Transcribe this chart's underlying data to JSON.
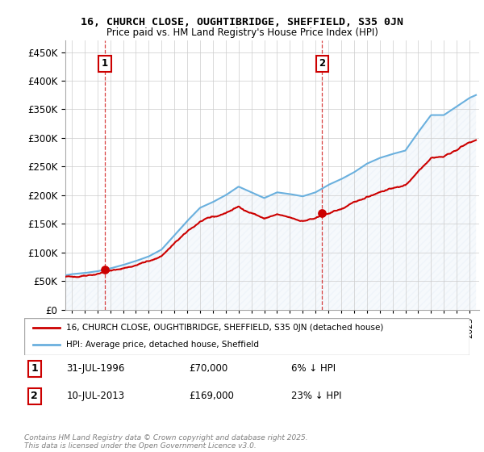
{
  "title_line1": "16, CHURCH CLOSE, OUGHTIBRIDGE, SHEFFIELD, S35 0JN",
  "title_line2": "Price paid vs. HM Land Registry's House Price Index (HPI)",
  "legend_line1": "16, CHURCH CLOSE, OUGHTIBRIDGE, SHEFFIELD, S35 0JN (detached house)",
  "legend_line2": "HPI: Average price, detached house, Sheffield",
  "annotation1_date": "31-JUL-1996",
  "annotation1_price": "£70,000",
  "annotation1_hpi": "6% ↓ HPI",
  "annotation2_date": "10-JUL-2013",
  "annotation2_price": "£169,000",
  "annotation2_hpi": "23% ↓ HPI",
  "copyright_text": "Contains HM Land Registry data © Crown copyright and database right 2025.\nThis data is licensed under the Open Government Licence v3.0.",
  "sale1_year": 1996.58,
  "sale1_price": 70000,
  "sale2_year": 2013.52,
  "sale2_price": 169000,
  "hpi_color": "#6ab0de",
  "price_color": "#cc0000",
  "dashed_line_color": "#cc0000",
  "background_hatch_color": "#dce8f5",
  "ylim_max": 470000,
  "ylim_min": 0,
  "hpi_years": [
    1993.5,
    1994.0,
    1995.0,
    1996.0,
    1997.0,
    1998.0,
    1999.0,
    2000.0,
    2001.0,
    2002.0,
    2003.0,
    2004.0,
    2005.0,
    2006.0,
    2007.0,
    2008.0,
    2009.0,
    2010.0,
    2011.0,
    2012.0,
    2013.0,
    2014.0,
    2015.0,
    2016.0,
    2017.0,
    2018.0,
    2019.0,
    2020.0,
    2021.0,
    2022.0,
    2023.0,
    2024.0,
    2025.0,
    2025.5
  ],
  "hpi_prices": [
    60000,
    62000,
    64000,
    67000,
    72000,
    78000,
    85000,
    93000,
    105000,
    130000,
    155000,
    178000,
    188000,
    200000,
    215000,
    205000,
    195000,
    205000,
    202000,
    198000,
    205000,
    218000,
    228000,
    240000,
    255000,
    265000,
    272000,
    278000,
    310000,
    340000,
    340000,
    355000,
    370000,
    375000
  ]
}
